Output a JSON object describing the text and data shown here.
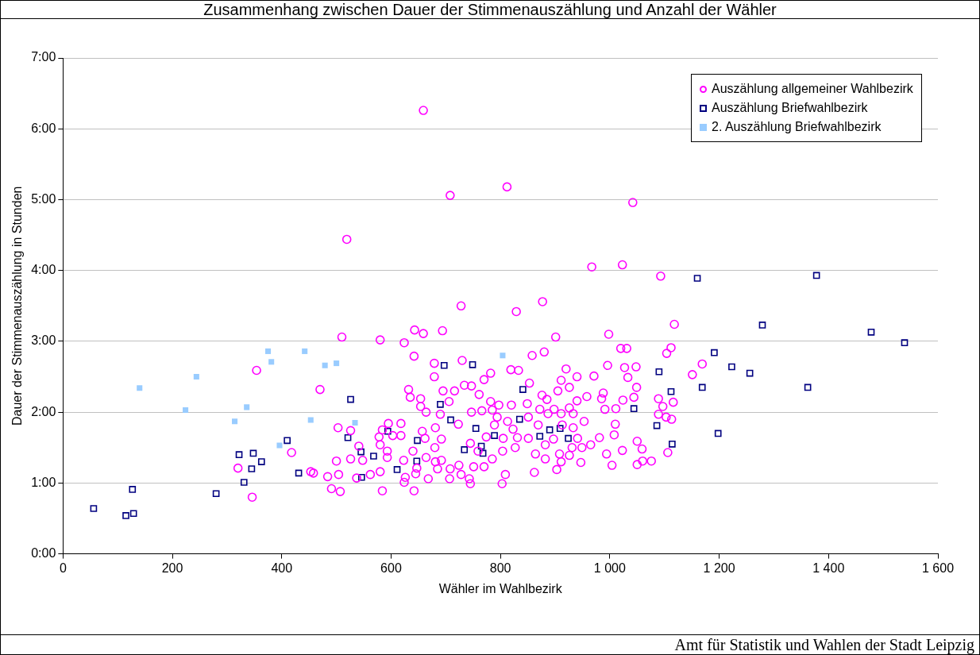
{
  "chart_data": {
    "type": "scatter",
    "title": "Zusammenhang zwischen Dauer der Stimmenauszählung und Anzahl der Wähler",
    "xlabel": "Wähler im Wahlbezirk",
    "ylabel": "Dauer der Stimmenauszählung in Stunden",
    "annotations": [
      "Amt für Statistik und Wahlen der Stadt Leipzig"
    ],
    "xlim": [
      0,
      1600
    ],
    "xticks": [
      0,
      200,
      400,
      600,
      800,
      {
        "value": 1000,
        "label": "1 000"
      },
      {
        "value": 1200,
        "label": "1 200"
      },
      {
        "value": 1400,
        "label": "1 400"
      },
      {
        "value": 1600,
        "label": "1 600"
      }
    ],
    "ylim": [
      0,
      7
    ],
    "yticks": [
      {
        "value": 0,
        "label": "0:00"
      },
      {
        "value": 1,
        "label": "1:00"
      },
      {
        "value": 2,
        "label": "2:00"
      },
      {
        "value": 3,
        "label": "3:00"
      },
      {
        "value": 4,
        "label": "4:00"
      },
      {
        "value": 5,
        "label": "5:00"
      },
      {
        "value": 6,
        "label": "6:00"
      },
      {
        "value": 7,
        "label": "7:00"
      }
    ],
    "grid": "y",
    "legend": "top right",
    "series": [
      {
        "name": "Auszählung allgemeiner Wahlbezirk",
        "color": "#ff00ff",
        "marker": "circle",
        "x": [
          659,
          519,
          708,
          812,
          1042,
          967,
          1023,
          1093,
          877,
          901,
          998,
          1118,
          880,
          1020,
          1031,
          1112,
          1104,
          1169,
          1151,
          920,
          940,
          971,
          996,
          1027,
          1048,
          1033,
          1049,
          988,
          985,
          958,
          940,
          1044,
          1024,
          1089,
          1116,
          1097,
          1011,
          991,
          1089,
          1113,
          1103,
          1010,
          1008,
          981,
          965,
          1050,
          1059,
          1023,
          994,
          1004,
          1050,
          1060,
          1076,
          1106,
          947,
          903,
          911,
          882,
          862,
          911,
          926,
          905,
          876,
          885,
          872,
          898,
          926,
          887,
          911,
          933,
          953,
          869,
          913,
          933,
          897,
          941,
          882,
          931,
          949,
          908,
          926,
          864,
          354,
          320,
          346,
          728,
          829,
          643,
          659,
          694,
          510,
          580,
          624,
          642,
          679,
          730,
          679,
          782,
          770,
          819,
          833,
          858,
          470,
          632,
          635,
          654,
          654,
          664,
          695,
          716,
          734,
          747,
          761,
          706,
          690,
          723,
          747,
          766,
          782,
          797,
          785,
          820,
          849,
          794,
          813,
          789,
          851,
          823,
          805,
          831,
          851,
          774,
          745,
          759,
          785,
          804,
          827,
          751,
          770,
          809,
          803,
          745,
          743,
          724,
          708,
          728,
          707,
          685,
          692,
          681,
          680,
          681,
          692,
          664,
          668,
          642,
          645,
          647,
          626,
          624,
          623,
          640,
          657,
          662,
          618,
          618,
          603,
          595,
          584,
          578,
          580,
          593,
          593,
          580,
          584,
          562,
          548,
          541,
          526,
          526,
          537,
          503,
          500,
          504,
          484,
          491,
          507,
          453,
          458,
          418,
          853
        ],
        "values": [
          6.26,
          4.44,
          5.06,
          5.18,
          4.96,
          4.05,
          4.08,
          3.92,
          3.56,
          3.06,
          3.1,
          3.24,
          2.85,
          2.9,
          2.9,
          2.91,
          2.83,
          2.68,
          2.53,
          2.61,
          2.5,
          2.51,
          2.66,
          2.63,
          2.64,
          2.49,
          2.35,
          2.27,
          2.19,
          2.22,
          2.16,
          2.21,
          2.17,
          2.19,
          2.14,
          2.08,
          2.05,
          2.04,
          1.97,
          1.9,
          1.93,
          1.83,
          1.68,
          1.64,
          1.54,
          1.59,
          1.48,
          1.46,
          1.41,
          1.25,
          1.26,
          1.31,
          1.31,
          1.43,
          1.29,
          1.19,
          1.3,
          1.34,
          1.15,
          2.45,
          2.35,
          2.3,
          2.24,
          2.18,
          2.04,
          2.04,
          2.06,
          1.98,
          1.98,
          1.98,
          1.87,
          1.82,
          1.82,
          1.78,
          1.62,
          1.63,
          1.54,
          1.5,
          1.5,
          1.41,
          1.39,
          1.41,
          2.59,
          1.21,
          0.8,
          3.5,
          3.42,
          3.16,
          3.11,
          3.15,
          3.06,
          3.02,
          2.98,
          2.79,
          2.69,
          2.73,
          2.5,
          2.55,
          2.46,
          2.6,
          2.59,
          2.8,
          2.32,
          2.32,
          2.21,
          2.19,
          2.08,
          2.0,
          2.3,
          2.3,
          2.38,
          2.37,
          2.25,
          2.15,
          1.97,
          1.83,
          2.0,
          2.02,
          2.15,
          2.1,
          2.03,
          2.1,
          2.12,
          1.93,
          1.87,
          1.82,
          1.93,
          1.76,
          1.63,
          1.64,
          1.63,
          1.65,
          1.56,
          1.45,
          1.34,
          1.45,
          1.5,
          1.23,
          1.23,
          1.12,
          0.99,
          0.99,
          1.06,
          1.25,
          1.2,
          1.12,
          1.06,
          1.2,
          1.32,
          1.3,
          1.5,
          1.78,
          1.62,
          1.36,
          1.06,
          0.89,
          1.13,
          1.21,
          1.08,
          1.01,
          1.32,
          1.45,
          1.73,
          1.63,
          1.84,
          1.67,
          1.67,
          1.84,
          1.75,
          1.65,
          1.54,
          1.45,
          1.36,
          1.16,
          0.89,
          1.12,
          1.32,
          1.52,
          1.74,
          1.34,
          1.07,
          1.78,
          1.31,
          1.12,
          1.09,
          0.92,
          0.88,
          1.16,
          1.14,
          1.43,
          2.41
        ]
      },
      {
        "name": "Auszählung Briefwahlbezirk",
        "color": "#000080",
        "marker": "square",
        "x": [
          56,
          115,
          129,
          127,
          280,
          322,
          348,
          363,
          345,
          331,
          410,
          431,
          526,
          521,
          545,
          568,
          546,
          594,
          611,
          648,
          647,
          690,
          697,
          709,
          734,
          749,
          755,
          765,
          768,
          789,
          835,
          841,
          872,
          890,
          909,
          924,
          1044,
          1090,
          1086,
          1112,
          1114,
          1160,
          1169,
          1191,
          1198,
          1223,
          1256,
          1378,
          1279,
          1478,
          1539,
          1362
        ],
        "values": [
          0.64,
          0.54,
          0.57,
          0.91,
          0.85,
          1.4,
          1.42,
          1.3,
          1.2,
          1.01,
          1.6,
          1.14,
          2.18,
          1.64,
          1.44,
          1.38,
          1.08,
          1.73,
          1.19,
          1.6,
          1.31,
          2.11,
          2.66,
          1.89,
          1.47,
          2.67,
          1.77,
          1.52,
          1.42,
          1.67,
          1.9,
          2.32,
          1.66,
          1.75,
          1.77,
          1.63,
          2.05,
          2.57,
          1.81,
          2.29,
          1.55,
          3.89,
          2.35,
          2.84,
          1.7,
          2.64,
          2.55,
          3.93,
          3.23,
          3.13,
          2.98,
          2.35
        ]
      },
      {
        "name": "2. Auszählung Briefwahlbezirk",
        "color": "#99ccff",
        "marker": "square",
        "x": [
          140,
          224,
          244,
          314,
          336,
          375,
          381,
          396,
          442,
          479,
          500,
          453,
          534,
          804
        ],
        "values": [
          2.34,
          2.03,
          2.5,
          1.87,
          2.07,
          2.86,
          2.71,
          1.53,
          2.86,
          2.66,
          2.69,
          1.89,
          1.85,
          2.8
        ]
      }
    ]
  }
}
